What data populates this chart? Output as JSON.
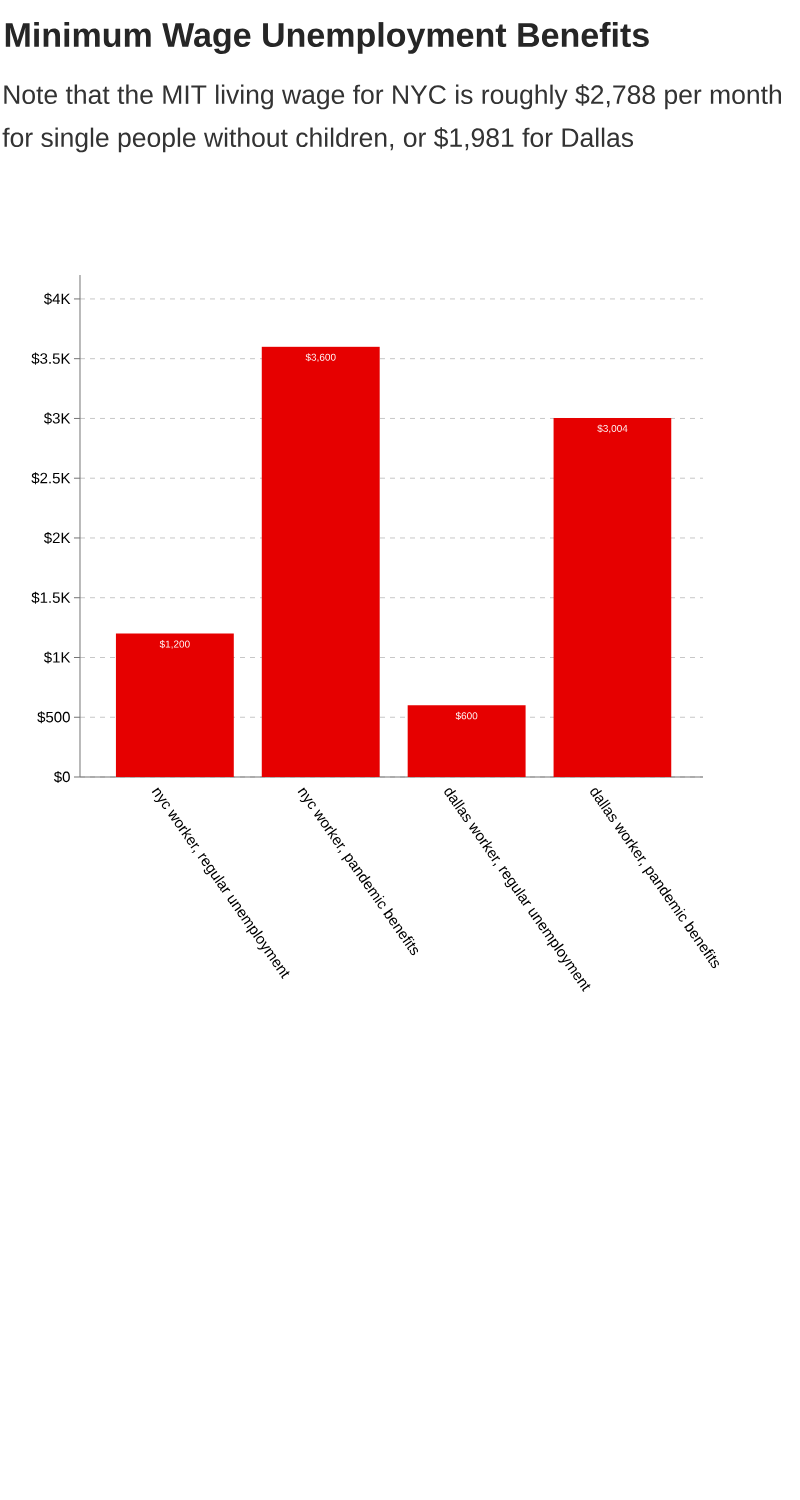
{
  "chart_data": {
    "type": "bar",
    "title": "Minimum Wage Unemployment Benefits",
    "subtitle": "Note that the MIT living wage for NYC is roughly $2,788 per month for single people without children, or $1,981 for Dallas",
    "categories": [
      "nyc worker, regular unemployment",
      "nyc worker, pandemic benefits",
      "dallas worker, regular unemployment",
      "dallas worker, pandemic benefits"
    ],
    "values": [
      1200,
      3600,
      600,
      3004
    ],
    "value_labels": [
      "$1,200",
      "$3,600",
      "$600",
      "$3,004"
    ],
    "color": "#e60000",
    "ylim": [
      0,
      4200
    ],
    "yticks": [
      {
        "value": 0,
        "label": "$0"
      },
      {
        "value": 500,
        "label": "$500"
      },
      {
        "value": 1000,
        "label": "$1K"
      },
      {
        "value": 1500,
        "label": "$1.5K"
      },
      {
        "value": 2000,
        "label": "$2K"
      },
      {
        "value": 2500,
        "label": "$2.5K"
      },
      {
        "value": 3000,
        "label": "$3K"
      },
      {
        "value": 3500,
        "label": "$3.5K"
      },
      {
        "value": 4000,
        "label": "$4K"
      }
    ],
    "grid": "y"
  }
}
